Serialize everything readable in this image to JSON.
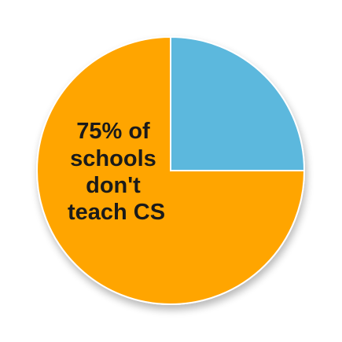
{
  "chart_data": {
    "type": "pie",
    "title": "",
    "slices": [
      {
        "label": "don't teach CS",
        "value": 75,
        "color": "#FFA500"
      },
      {
        "label": "",
        "value": 25,
        "color": "#5BB8DD"
      }
    ],
    "annotation": {
      "lines": [
        "75% of",
        "schools",
        "don't",
        "teach CS"
      ]
    },
    "legend": "none"
  }
}
